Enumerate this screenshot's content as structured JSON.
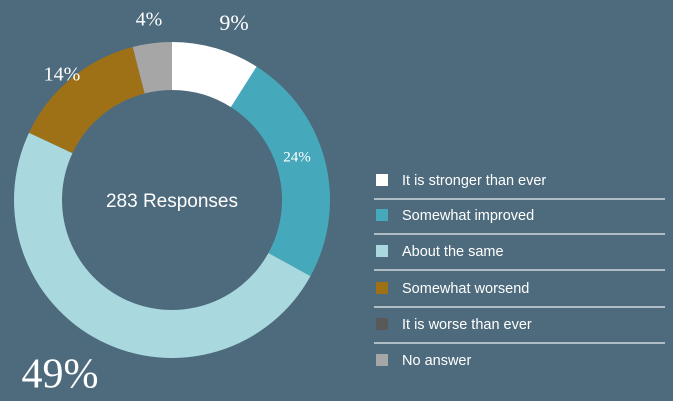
{
  "chart_data": {
    "type": "donut",
    "center_label": "283 Responses",
    "categories": [
      "It is stronger than ever",
      "Somewhat improved",
      "About the same",
      "Somewhat worsend",
      "It is worse than ever",
      "No answer"
    ],
    "values": [
      9,
      24,
      49,
      14,
      0,
      4
    ],
    "value_labels": [
      "9%",
      "24%",
      "49%",
      "14%",
      null,
      "4%"
    ],
    "colors": [
      "#ffffff",
      "#45a9bb",
      "#a9d8de",
      "#9e7117",
      "#595959",
      "#a6a6a6"
    ],
    "legend": "right"
  }
}
